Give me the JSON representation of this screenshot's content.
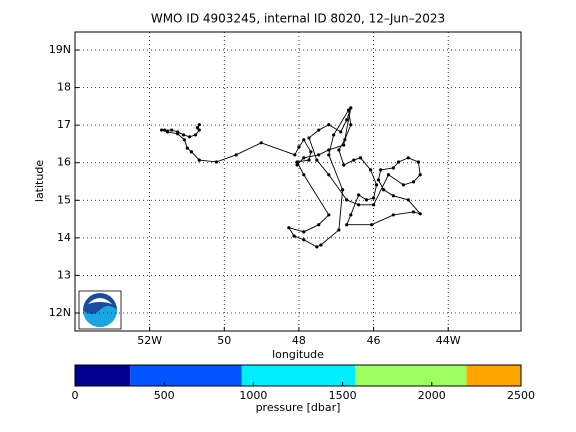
{
  "chart_data": {
    "type": "line",
    "title": "WMO ID 4903245, internal ID 8020, 12–Jun–2023",
    "x_label": "longitude",
    "y_label": "latitude",
    "xlim": [
      -54,
      -42.05
    ],
    "ylim": [
      11.52,
      19.48
    ],
    "xticks": [
      {
        "value": -52,
        "label": "52W"
      },
      {
        "value": -50,
        "label": "50"
      },
      {
        "value": -48,
        "label": "48"
      },
      {
        "value": -46,
        "label": "46"
      },
      {
        "value": -44,
        "label": "44W"
      }
    ],
    "yticks": [
      {
        "value": 12,
        "label": "12N"
      },
      13,
      14,
      15,
      16,
      17,
      18,
      {
        "value": 19,
        "label": "19N"
      }
    ],
    "grid": true,
    "color": "#000000",
    "x": [
      -50.67,
      -50.72,
      -50.67,
      -50.77,
      -50.93,
      -51.09,
      -51.25,
      -51.41,
      -51.6,
      -51.68,
      -51.52,
      -51.25,
      -51.07,
      -50.99,
      -50.88,
      -50.67,
      -50.21,
      -49.68,
      -49.01,
      -48.11,
      -48,
      -47.87,
      -47.68,
      -47.73,
      -48.05,
      -47.87,
      -47.2,
      -47.47,
      -47.87,
      -48.27,
      -48.13,
      -47.87,
      -47.52,
      -47.41,
      -46.93,
      -46.83,
      -47.2,
      -47.07,
      -46.67,
      -46.61,
      -46.77,
      -46.93,
      -46.8,
      -46.53,
      -46.35,
      -46.08,
      -45.92,
      -46,
      -46.19,
      -46.4,
      -46.61,
      -46.72,
      -46.05,
      -45.47,
      -44.93,
      -44.75,
      -45.07,
      -45.47,
      -45.73,
      -45.87,
      -45.81,
      -45.47,
      -45.33,
      -45.07,
      -44.8,
      -44.75,
      -44.93,
      -45.2,
      -45.6,
      -46,
      -46.4,
      -46.72,
      -47.2,
      -47.52,
      -47.73,
      -47.47,
      -47.2,
      -46.88,
      -46.72,
      -46.61,
      -46.8,
      -47.2,
      -47.47,
      -47.87,
      -48.05
    ],
    "values": [
      17.01,
      16.93,
      16.87,
      16.74,
      16.69,
      16.74,
      16.82,
      16.87,
      16.87,
      16.87,
      16.82,
      16.77,
      16.61,
      16.39,
      16.29,
      16.07,
      16.02,
      16.21,
      16.53,
      16.21,
      16.42,
      16.61,
      16.29,
      16.07,
      16.02,
      15.68,
      14.61,
      14.35,
      14.16,
      14.27,
      14.05,
      13.95,
      13.76,
      13.81,
      14.21,
      15.28,
      16.21,
      16.74,
      17.4,
      17.01,
      16.61,
      16.34,
      15.94,
      16.07,
      16.13,
      15.81,
      15.41,
      15.06,
      15.01,
      15.14,
      14.61,
      14.35,
      14.35,
      14.61,
      14.69,
      14.64,
      15.01,
      15.12,
      15.28,
      15.54,
      15.81,
      15.86,
      16.02,
      16.13,
      16.02,
      15.68,
      15.49,
      15.41,
      15.68,
      14.88,
      14.88,
      15.01,
      15.68,
      16.07,
      16.66,
      16.87,
      17.01,
      16.82,
      17.14,
      17.46,
      16.47,
      16.34,
      16.21,
      16.13,
      15.94
    ],
    "colorbar": {
      "label": "pressure [dbar]",
      "lim": [
        0,
        2500
      ],
      "ticks": [
        0,
        500,
        1000,
        1500,
        2000,
        2500
      ],
      "bins": [
        0,
        310,
        935,
        1570,
        2195,
        2500
      ],
      "colors": [
        "#00008f",
        "#0055ff",
        "#00eeff",
        "#a0ff60",
        "#ffa500"
      ]
    }
  }
}
